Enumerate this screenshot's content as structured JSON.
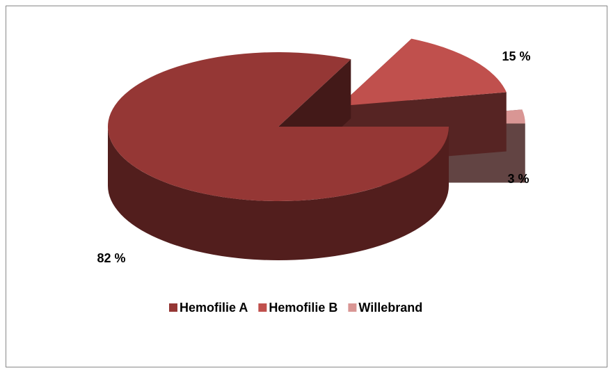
{
  "chart_data": {
    "type": "pie",
    "categories": [
      "Hemofilie A",
      "Hemofilie B",
      "Willebrand"
    ],
    "values": [
      82,
      15,
      3
    ],
    "value_labels": [
      "82 %",
      "15 %",
      "3 %"
    ],
    "colors": [
      "#953735",
      "#c0504d",
      "#d99694"
    ],
    "legend": "bottom"
  }
}
